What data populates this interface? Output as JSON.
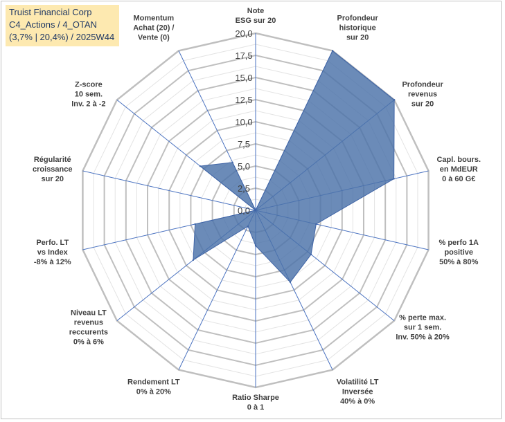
{
  "chart_data": {
    "type": "radar",
    "title_lines": [
      "Truist Financial Corp",
      "C4_Actions / 4_OTAN",
      "(3,7% | 20,4%) / 2025W44"
    ],
    "rmax": 20,
    "ticks": [
      "0,0",
      "2,5",
      "5,0",
      "7,5",
      "10,0",
      "12,5",
      "15,0",
      "17,5",
      "20,0"
    ],
    "axes": [
      {
        "label": [
          "Note",
          "ESG sur 20"
        ],
        "value": 0
      },
      {
        "label": [
          "Profondeur",
          "historique",
          "sur 20"
        ],
        "value": 20
      },
      {
        "label": [
          "Profondeur",
          "revenus",
          "sur 20"
        ],
        "value": 20
      },
      {
        "label": [
          "Capl. bours.",
          "en MdEUR",
          "0 à 60 G€"
        ],
        "value": 16
      },
      {
        "label": [
          "% perfo 1A",
          "positive",
          "50% à 80%"
        ],
        "value": 7
      },
      {
        "label": [
          "% perte max.",
          "sur 1 sem.",
          "Inv. 50% à 20%"
        ],
        "value": 8
      },
      {
        "label": [
          "Volatilité LT",
          "Inversée",
          "40% à 0%"
        ],
        "value": 9
      },
      {
        "label": [
          "Ratio Sharpe",
          "0 à 1"
        ],
        "value": 4
      },
      {
        "label": [
          "Rendement LT",
          "0% à 20%"
        ],
        "value": 2
      },
      {
        "label": [
          "Niveau LT",
          "revenus",
          "reccurents",
          "0% à 6%"
        ],
        "value": 9
      },
      {
        "label": [
          "Perfo. LT",
          "vs Index",
          "-8% à 12%"
        ],
        "value": 7
      },
      {
        "label": [
          "Régularité",
          "croissance",
          "sur 20"
        ],
        "value": 0
      },
      {
        "label": [
          "Z-score",
          "10 sem.",
          "Inv. 2 à -2"
        ],
        "value": 8
      },
      {
        "label": [
          "Momentum",
          "Achat (20) /",
          "Vente (0)"
        ],
        "value": 6
      }
    ],
    "series": [
      {
        "name": "Truist Financial Corp",
        "color": "#4a72a8"
      }
    ]
  }
}
